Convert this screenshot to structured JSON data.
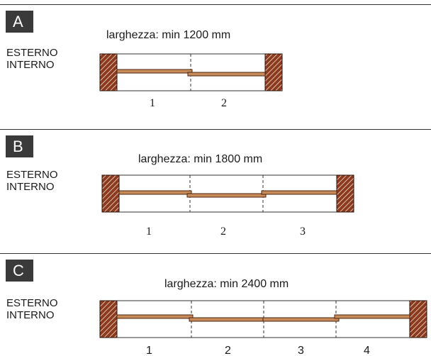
{
  "diagrams": [
    {
      "letter": "A",
      "exterior_label": "ESTERNO",
      "interior_label": "INTERNO",
      "width_label": "larghezza: min 1200 mm",
      "panel_numbers": [
        "1",
        "2"
      ]
    },
    {
      "letter": "B",
      "exterior_label": "ESTERNO",
      "interior_label": "INTERNO",
      "width_label": "larghezza: min 1800 mm",
      "panel_numbers": [
        "1",
        "2",
        "3"
      ]
    },
    {
      "letter": "C",
      "exterior_label": "ESTERNO",
      "interior_label": "INTERNO",
      "width_label": "larghezza: min 2400 mm",
      "panel_numbers": [
        "1",
        "2",
        "3",
        "4"
      ]
    }
  ],
  "colors": {
    "wall_fill": "#8b3a1e",
    "sash_fill": "#c98a5a",
    "sash_stroke": "#4a2410",
    "badge_bg": "#3a3a3a"
  }
}
